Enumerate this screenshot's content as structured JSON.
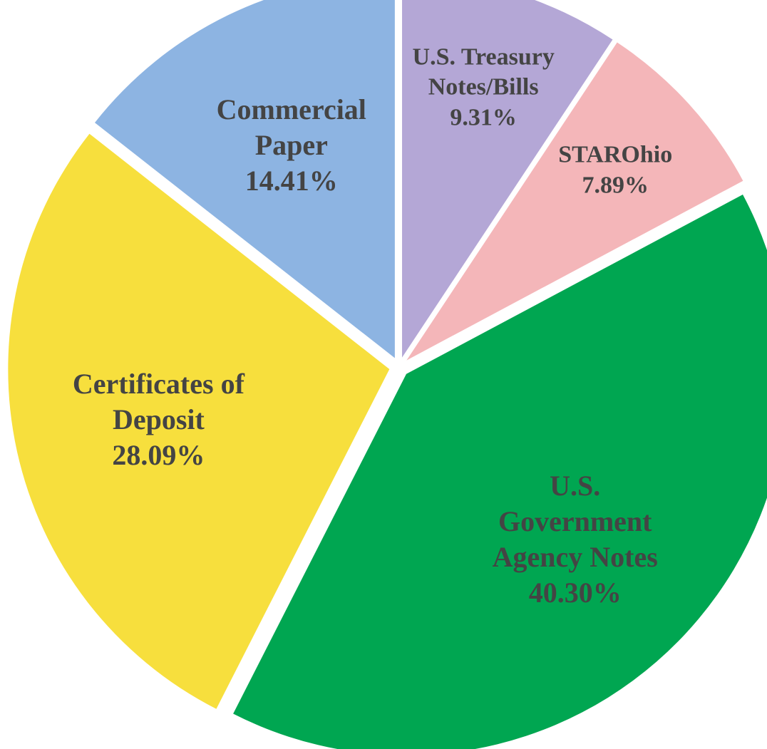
{
  "chart_data": {
    "type": "pie",
    "categories": [
      "U.S. Treasury Notes/Bills",
      "STAROhio",
      "U.S. Government Agency Notes",
      "Certificates of Deposit",
      "Commercial Paper"
    ],
    "values": [
      9.31,
      7.89,
      40.3,
      28.09,
      14.41
    ],
    "value_labels": [
      "9.31%",
      "7.89%",
      "40.30%",
      "28.09%",
      "14.41%"
    ],
    "colors": [
      "#b4a7d6",
      "#f4b6b9",
      "#00a651",
      "#f7df3d",
      "#8db4e2"
    ]
  }
}
